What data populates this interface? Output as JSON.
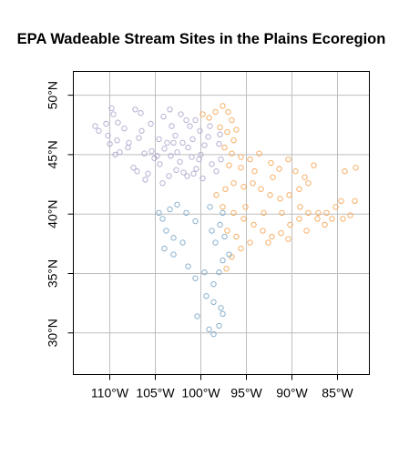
{
  "chart_data": {
    "type": "scatter",
    "title": "EPA Wadeable Stream Sites in the Plains Ecoregion",
    "xlabel": "",
    "ylabel": "",
    "xlim": [
      -114,
      -81.5
    ],
    "ylim": [
      26.5,
      52
    ],
    "grid": true,
    "legend": "none",
    "x_ticks": [
      {
        "value": -110,
        "label": "110°W"
      },
      {
        "value": -105,
        "label": "105°W"
      },
      {
        "value": -100,
        "label": "100°W"
      },
      {
        "value": -95,
        "label": "95°W"
      },
      {
        "value": -90,
        "label": "90°W"
      },
      {
        "value": -85,
        "label": "85°W"
      }
    ],
    "y_ticks": [
      {
        "value": 30,
        "label": "30°N"
      },
      {
        "value": 35,
        "label": "35°N"
      },
      {
        "value": 40,
        "label": "40°N"
      },
      {
        "value": 45,
        "label": "45°N"
      },
      {
        "value": 50,
        "label": "50°N"
      }
    ],
    "series": [
      {
        "color": "#b3a9d0",
        "points": [
          [
            -111.6,
            47.4
          ],
          [
            -111.2,
            47.0
          ],
          [
            -110.4,
            47.6
          ],
          [
            -109.8,
            48.9
          ],
          [
            -109.6,
            48.4
          ],
          [
            -110.2,
            46.6
          ],
          [
            -109.1,
            47.7
          ],
          [
            -108.4,
            47.2
          ],
          [
            -107.2,
            48.8
          ],
          [
            -106.6,
            48.5
          ],
          [
            -105.5,
            47.6
          ],
          [
            -104.1,
            48.2
          ],
          [
            -103.4,
            48.8
          ],
          [
            -103.2,
            47.4
          ],
          [
            -102.2,
            48.4
          ],
          [
            -101.6,
            47.9
          ],
          [
            -101.2,
            47.4
          ],
          [
            -100.6,
            47.9
          ],
          [
            -100.1,
            47.0
          ],
          [
            -102.8,
            46.6
          ],
          [
            -103.7,
            46.0
          ],
          [
            -104.6,
            46.3
          ],
          [
            -105.4,
            45.3
          ],
          [
            -106.2,
            45.1
          ],
          [
            -106.8,
            46.4
          ],
          [
            -108.0,
            45.6
          ],
          [
            -109.4,
            45.0
          ],
          [
            -110.0,
            45.9
          ],
          [
            -108.9,
            45.2
          ],
          [
            -107.4,
            43.9
          ],
          [
            -107.0,
            43.6
          ],
          [
            -106.1,
            42.9
          ],
          [
            -105.1,
            44.7
          ],
          [
            -104.5,
            44.2
          ],
          [
            -104.0,
            45.5
          ],
          [
            -103.3,
            44.9
          ],
          [
            -102.6,
            45.2
          ],
          [
            -102.3,
            44.4
          ],
          [
            -101.4,
            45.6
          ],
          [
            -100.9,
            46.3
          ],
          [
            -100.2,
            44.6
          ],
          [
            -99.6,
            45.8
          ],
          [
            -99.2,
            46.5
          ],
          [
            -98.8,
            44.2
          ],
          [
            -99.0,
            47.4
          ],
          [
            -100.5,
            43.8
          ],
          [
            -101.9,
            43.5
          ],
          [
            -102.7,
            43.7
          ],
          [
            -103.5,
            43.2
          ],
          [
            -104.2,
            42.6
          ],
          [
            -105.8,
            43.4
          ],
          [
            -101.5,
            43.2
          ],
          [
            -100.8,
            43.4
          ],
          [
            -99.8,
            43.0
          ],
          [
            -98.3,
            43.6
          ],
          [
            -97.8,
            44.6
          ],
          [
            -98.0,
            45.9
          ],
          [
            -97.9,
            46.7
          ],
          [
            -100.0,
            45.0
          ],
          [
            -101.0,
            44.8
          ],
          [
            -102.0,
            46.0
          ],
          [
            -103.0,
            46.0
          ],
          [
            -104.8,
            44.9
          ],
          [
            -106.5,
            47.0
          ],
          [
            -107.9,
            46.0
          ],
          [
            -109.2,
            46.2
          ]
        ]
      },
      {
        "color": "#f5a85a",
        "points": [
          [
            -99.8,
            48.4
          ],
          [
            -99.1,
            48.1
          ],
          [
            -97.6,
            49.1
          ],
          [
            -97.0,
            48.6
          ],
          [
            -96.6,
            47.9
          ],
          [
            -97.9,
            47.3
          ],
          [
            -97.1,
            46.9
          ],
          [
            -96.4,
            46.2
          ],
          [
            -97.4,
            45.6
          ],
          [
            -96.6,
            45.1
          ],
          [
            -95.6,
            44.8
          ],
          [
            -94.6,
            44.6
          ],
          [
            -93.6,
            45.1
          ],
          [
            -92.3,
            44.3
          ],
          [
            -91.4,
            43.8
          ],
          [
            -90.4,
            44.6
          ],
          [
            -89.6,
            43.6
          ],
          [
            -88.6,
            43.1
          ],
          [
            -87.6,
            44.1
          ],
          [
            -88.2,
            42.6
          ],
          [
            -89.2,
            42.1
          ],
          [
            -90.3,
            41.6
          ],
          [
            -91.3,
            41.3
          ],
          [
            -92.4,
            41.6
          ],
          [
            -93.4,
            42.1
          ],
          [
            -94.3,
            42.6
          ],
          [
            -95.3,
            42.3
          ],
          [
            -96.4,
            42.6
          ],
          [
            -97.3,
            42.1
          ],
          [
            -98.3,
            41.6
          ],
          [
            -97.6,
            40.6
          ],
          [
            -96.4,
            40.1
          ],
          [
            -95.3,
            39.6
          ],
          [
            -94.2,
            39.1
          ],
          [
            -93.2,
            38.6
          ],
          [
            -92.2,
            38.1
          ],
          [
            -91.2,
            38.4
          ],
          [
            -90.2,
            39.1
          ],
          [
            -89.2,
            39.6
          ],
          [
            -88.2,
            40.1
          ],
          [
            -87.2,
            39.6
          ],
          [
            -86.2,
            40.1
          ],
          [
            -85.2,
            40.6
          ],
          [
            -84.4,
            39.6
          ],
          [
            -83.6,
            39.9
          ],
          [
            -83.1,
            41.1
          ],
          [
            -84.2,
            43.6
          ],
          [
            -83.0,
            43.9
          ],
          [
            -86.4,
            39.1
          ],
          [
            -88.4,
            38.6
          ],
          [
            -90.4,
            37.9
          ],
          [
            -92.6,
            37.6
          ],
          [
            -94.6,
            37.6
          ],
          [
            -95.6,
            37.1
          ],
          [
            -96.6,
            36.4
          ],
          [
            -97.2,
            35.4
          ],
          [
            -96.1,
            38.1
          ],
          [
            -97.1,
            38.6
          ],
          [
            -95.1,
            40.6
          ],
          [
            -93.1,
            40.1
          ],
          [
            -91.1,
            40.1
          ],
          [
            -89.1,
            40.6
          ],
          [
            -87.1,
            40.1
          ],
          [
            -85.6,
            39.6
          ],
          [
            -84.6,
            41.1
          ],
          [
            -92.1,
            43.1
          ],
          [
            -94.1,
            43.6
          ],
          [
            -95.6,
            43.9
          ],
          [
            -96.9,
            44.1
          ],
          [
            -96.1,
            47.1
          ],
          [
            -98.4,
            48.6
          ]
        ]
      },
      {
        "color": "#7fa9c9",
        "points": [
          [
            -104.6,
            40.1
          ],
          [
            -104.2,
            39.6
          ],
          [
            -103.4,
            40.4
          ],
          [
            -102.6,
            40.8
          ],
          [
            -101.6,
            40.1
          ],
          [
            -100.6,
            39.4
          ],
          [
            -103.8,
            38.6
          ],
          [
            -103.0,
            38.0
          ],
          [
            -102.0,
            37.6
          ],
          [
            -104.0,
            37.1
          ],
          [
            -103.0,
            36.6
          ],
          [
            -101.4,
            35.6
          ],
          [
            -100.6,
            34.6
          ],
          [
            -99.6,
            35.1
          ],
          [
            -98.6,
            34.1
          ],
          [
            -99.4,
            33.1
          ],
          [
            -98.6,
            32.6
          ],
          [
            -97.6,
            31.6
          ],
          [
            -98.0,
            30.6
          ],
          [
            -98.6,
            29.9
          ],
          [
            -99.1,
            30.3
          ],
          [
            -100.4,
            31.4
          ],
          [
            -97.8,
            32.1
          ],
          [
            -98.0,
            35.1
          ],
          [
            -98.4,
            37.6
          ],
          [
            -98.8,
            38.6
          ],
          [
            -99.0,
            40.6
          ],
          [
            -97.6,
            40.1
          ],
          [
            -97.9,
            39.1
          ],
          [
            -97.4,
            38.1
          ],
          [
            -96.9,
            36.6
          ],
          [
            -97.6,
            36.1
          ]
        ]
      }
    ]
  }
}
